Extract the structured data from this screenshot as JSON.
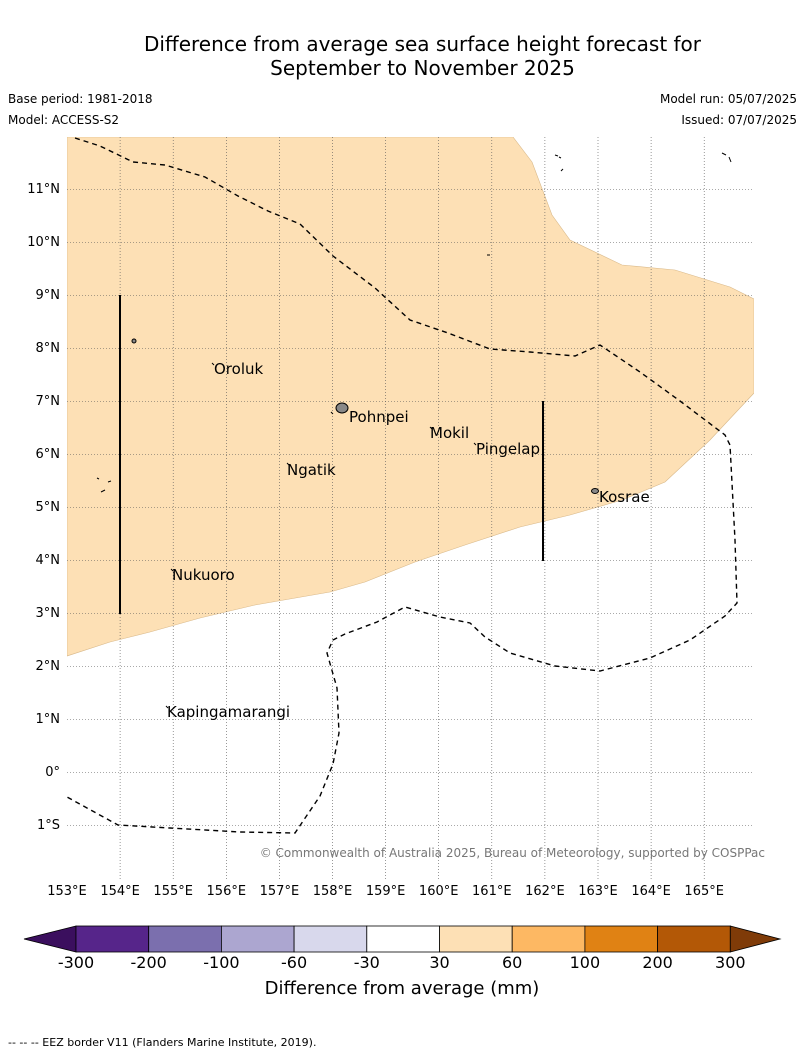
{
  "title_line1": "Difference from average sea surface height forecast for",
  "title_line2": "September to November 2025",
  "base_period": "Base period: 1981-2018",
  "model": "Model: ACCESS-S2",
  "model_run": "Model run: 05/07/2025",
  "issued": "Issued: 07/07/2025",
  "copyright": "© Commonwealth of Australia 2025, Bureau of Meteorology, supported by COSPPac",
  "lat_labels": [
    "11°N",
    "10°N",
    "9°N",
    "8°N",
    "7°N",
    "6°N",
    "5°N",
    "4°N",
    "3°N",
    "2°N",
    "1°N",
    "0°",
    "1°S"
  ],
  "lon_labels": [
    "153°E",
    "154°E",
    "155°E",
    "156°E",
    "157°E",
    "158°E",
    "159°E",
    "160°E",
    "161°E",
    "162°E",
    "163°E",
    "164°E",
    "165°E"
  ],
  "places": {
    "oroluk": "Oroluk",
    "pohnpei": "Pohnpei",
    "mokil": "Mokil",
    "pingelap": "Pingelap",
    "ngatik": "Ngatik",
    "kosrae": "Kosrae",
    "nukuoro": "Nukuoro",
    "kapingamarangi": "Kapingamarangi"
  },
  "colorbar": {
    "ticks": [
      "-300",
      "-200",
      "-100",
      "-60",
      "-30",
      "30",
      "60",
      "100",
      "200",
      "300"
    ],
    "colors": [
      "#3b0f5e",
      "#56258a",
      "#7b6fae",
      "#aca6d0",
      "#d8d8ec",
      "#ffffff",
      "#fde0b5",
      "#fdb863",
      "#e08214",
      "#b35806",
      "#7f3b08"
    ],
    "label": "Difference from average (mm)"
  },
  "map_colors": {
    "anomaly_30_60": "#fde0b5",
    "island": "#888888",
    "eez": "#000000"
  },
  "footnote": "--  --  -- EEZ border V11 (Flanders Marine Institute, 2019)."
}
